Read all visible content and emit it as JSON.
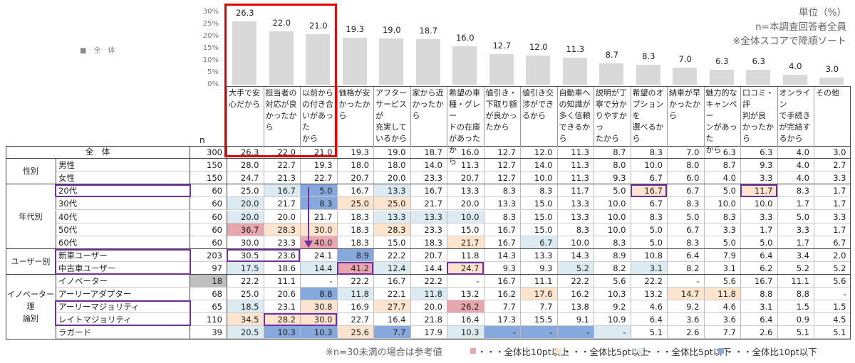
{
  "note": {
    "unit": "単位（%）",
    "base": "n=本調査回答者全員",
    "sort": "※全体スコアで降順ソート"
  },
  "chart_legend_label": "■　全　体",
  "n_header": "n",
  "footer": {
    "reference_note": "※n=30未満の場合は参考値",
    "legend": [
      {
        "label": "・・・全体比10pt以上",
        "color": "#e8a6ae"
      },
      {
        "label": "・・・全体比5pt以上",
        "color": "#fce4cf"
      },
      {
        "label": "・・・全体比5pt以下",
        "color": "#dcebf2"
      },
      {
        "label": "・・・全体比10pt以下",
        "color": "#86a8dc"
      }
    ]
  },
  "colors": {
    "bar": "#d9d9d9",
    "highlight_red": "#e00000",
    "highlight_purple": "#7030a0",
    "small_n": "#bfbfbf"
  },
  "chart_data": {
    "type": "bar",
    "ylim": [
      0,
      30
    ],
    "yticks": [
      "0%",
      "5%",
      "10%",
      "15%",
      "20%",
      "25%",
      "30%"
    ],
    "categories": [
      "大手で安\n心だから",
      "担当者の\n対応が良\nかったから",
      "以前から\nの付き合\nいがあった\nから",
      "価格が安\nかったから",
      "アフター\nサービスが\n充実して\nいるから",
      "家から近\nかったから",
      "希望の車\n種・グレー\nドの在庫\nがあったか\nら",
      "値引き・\n下取り額\nが良かっ\nたから",
      "値引き交\n渉ができ\nるから",
      "自動車へ\nの知識が\n多く信頼\nできるから",
      "説明が丁\n寧で分か\nりやすかっ\nたから",
      "希望のオ\nプションを\n選べるか\nら",
      "納車が早\nかったから",
      "魅力的な\nキャンペー\nンがあった\nから",
      "口コミ・評\n判が良\nかったから",
      "オンライン\nで手続き\nが完結す\nるから",
      "その他"
    ],
    "values": [
      26.3,
      22.0,
      21.0,
      19.3,
      19.0,
      18.7,
      16.0,
      12.7,
      12.0,
      11.3,
      8.7,
      8.3,
      7.0,
      6.3,
      6.3,
      4.0,
      3.0
    ]
  },
  "table": {
    "groups": [
      {
        "label": "全　体",
        "rows": [
          0
        ]
      },
      {
        "label": "性別",
        "rows": [
          1,
          2
        ]
      },
      {
        "label": "年代別",
        "rows": [
          3,
          4,
          5,
          6,
          7
        ]
      },
      {
        "label": "ユーザー別",
        "rows": [
          8,
          9
        ]
      },
      {
        "label": "イノベーター理\n論別",
        "rows": [
          10,
          11,
          12,
          13,
          14
        ]
      }
    ],
    "rows": [
      {
        "label": "全　体",
        "n": "300",
        "v": [
          "26.3",
          "22.0",
          "21.0",
          "19.3",
          "19.0",
          "18.7",
          "16.0",
          "12.7",
          "12.0",
          "11.3",
          "8.7",
          "8.3",
          "7.0",
          "6.3",
          "6.3",
          "4.0",
          "3.0"
        ]
      },
      {
        "label": "男性",
        "n": "150",
        "v": [
          "28.0",
          "22.7",
          "19.3",
          "18.0",
          "18.0",
          "14.0",
          "11.3",
          "12.7",
          "14.0",
          "11.3",
          "8.0",
          "10.0",
          "8.0",
          "8.7",
          "9.3",
          "4.0",
          "2.7"
        ]
      },
      {
        "label": "女性",
        "n": "150",
        "v": [
          "24.7",
          "21.3",
          "22.7",
          "20.7",
          "20.0",
          "23.3",
          "20.7",
          "12.7",
          "10.0",
          "11.3",
          "9.3",
          "6.7",
          "6.0",
          "4.0",
          "3.3",
          "4.0",
          "3.3"
        ]
      },
      {
        "label": "20代",
        "n": "60",
        "v": [
          "25.0",
          "16.7",
          "5.0",
          "16.7",
          "13.3",
          "16.7",
          "13.3",
          "8.3",
          "8.3",
          "11.7",
          "5.0",
          "16.7",
          "6.7",
          "5.0",
          "11.7",
          "8.3",
          "1.7"
        ]
      },
      {
        "label": "30代",
        "n": "60",
        "v": [
          "20.0",
          "21.7",
          "8.3",
          "25.0",
          "25.0",
          "21.7",
          "20.0",
          "13.3",
          "15.0",
          "13.3",
          "10.0",
          "6.7",
          "8.3",
          "10.0",
          "10.0",
          "1.7",
          "1.7"
        ]
      },
      {
        "label": "40代",
        "n": "60",
        "v": [
          "20.0",
          "20.0",
          "21.7",
          "18.3",
          "13.3",
          "13.3",
          "10.0",
          "8.3",
          "15.0",
          "13.3",
          "10.0",
          "8.3",
          "5.0",
          "8.3",
          "3.3",
          "5.0",
          "3.3"
        ]
      },
      {
        "label": "50代",
        "n": "60",
        "v": [
          "36.7",
          "28.3",
          "30.0",
          "18.3",
          "28.3",
          "23.3",
          "15.0",
          "16.7",
          "15.0",
          "8.3",
          "10.0",
          "5.0",
          "6.7",
          "3.3",
          "1.7",
          "3.3",
          "1.7"
        ]
      },
      {
        "label": "60代",
        "n": "60",
        "v": [
          "30.0",
          "23.3",
          "40.0",
          "18.3",
          "15.0",
          "18.3",
          "21.7",
          "16.7",
          "6.7",
          "10.0",
          "8.3",
          "5.0",
          "8.3",
          "5.0",
          "5.0",
          "1.7",
          "6.7"
        ]
      },
      {
        "label": "新車ユーザー",
        "n": "203",
        "v": [
          "30.5",
          "23.6",
          "24.1",
          "8.9",
          "22.2",
          "20.7",
          "11.8",
          "14.3",
          "13.3",
          "14.3",
          "8.9",
          "10.8",
          "6.4",
          "7.9",
          "6.4",
          "3.4",
          "2.0"
        ]
      },
      {
        "label": "中古車ユーザー",
        "n": "97",
        "v": [
          "17.5",
          "18.6",
          "14.4",
          "41.2",
          "12.4",
          "14.4",
          "24.7",
          "9.3",
          "9.3",
          "5.2",
          "8.2",
          "3.1",
          "8.2",
          "3.1",
          "6.2",
          "5.2",
          "5.2"
        ]
      },
      {
        "label": "イノベーター",
        "n": "18",
        "small_n": true,
        "v": [
          "22.2",
          "11.1",
          "-",
          "22.2",
          "16.7",
          "22.2",
          "-",
          "16.7",
          "11.1",
          "22.2",
          "5.6",
          "22.2",
          "-",
          "5.6",
          "16.7",
          "11.1",
          "5.6"
        ]
      },
      {
        "label": "アーリーアダプター",
        "n": "68",
        "v": [
          "25.0",
          "20.6",
          "8.8",
          "11.8",
          "22.1",
          "11.8",
          "13.2",
          "16.2",
          "17.6",
          "16.2",
          "10.3",
          "13.2",
          "14.7",
          "11.8",
          "8.8",
          "8.8",
          "-"
        ]
      },
      {
        "label": "アーリーマジョリティ",
        "n": "65",
        "v": [
          "18.5",
          "23.1",
          "30.8",
          "16.9",
          "27.7",
          "20.0",
          "26.2",
          "7.7",
          "7.7",
          "13.8",
          "9.2",
          "4.6",
          "9.2",
          "4.6",
          "3.1",
          "1.5",
          "1.5"
        ]
      },
      {
        "label": "レイトマジョリティ",
        "n": "110",
        "v": [
          "34.5",
          "28.2",
          "30.0",
          "22.7",
          "16.4",
          "21.8",
          "16.4",
          "17.3",
          "15.5",
          "9.1",
          "10.9",
          "6.4",
          "3.6",
          "3.6",
          "6.4",
          "0.9",
          "4.5"
        ]
      },
      {
        "label": "ラガード",
        "n": "39",
        "v": [
          "20.5",
          "10.3",
          "10.3",
          "25.6",
          "7.7",
          "17.9",
          "10.3",
          "-",
          "-",
          "-",
          "-",
          "5.1",
          "2.6",
          "7.7",
          "2.6",
          "5.1",
          "5.1"
        ]
      }
    ]
  }
}
